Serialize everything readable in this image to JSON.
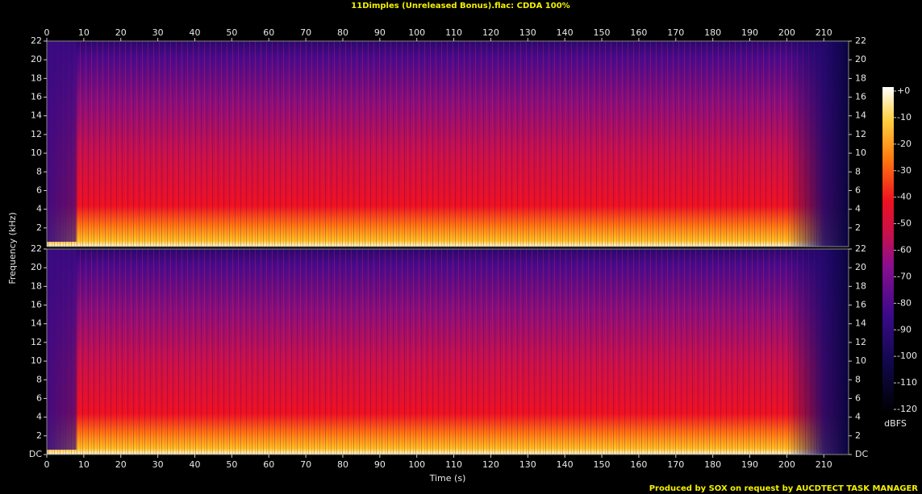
{
  "chart_data": {
    "type": "spectrogram",
    "title": "11Dimples (Unreleased Bonus).flac: CDDA 100%",
    "x_label": "Time (s)",
    "y_label": "Frequency (kHz)",
    "xlim": [
      0,
      216.7
    ],
    "xticks": [
      0,
      10,
      20,
      30,
      40,
      50,
      60,
      70,
      80,
      90,
      100,
      110,
      120,
      130,
      140,
      150,
      160,
      170,
      180,
      190,
      200,
      210
    ],
    "channels": [
      {
        "ylim": [
          0,
          22
        ],
        "yticks": [
          2,
          4,
          6,
          8,
          10,
          12,
          14,
          16,
          18,
          20,
          22
        ]
      },
      {
        "ylim": [
          0,
          22
        ],
        "yticks": [
          {
            "value": 0,
            "label": "DC"
          },
          2,
          4,
          6,
          8,
          10,
          12,
          14,
          16,
          18,
          20,
          22
        ]
      }
    ],
    "colorbar": {
      "label": "dBFS",
      "lim": [
        -120,
        0
      ],
      "ticks": [
        {
          "value": 0,
          "label": "+0"
        },
        -10,
        -20,
        -30,
        -40,
        -50,
        -60,
        -70,
        -80,
        -90,
        -100,
        -110,
        -120
      ]
    },
    "footer": "Produced by SOX on request by AUCDTECT TASK MANAGER"
  }
}
